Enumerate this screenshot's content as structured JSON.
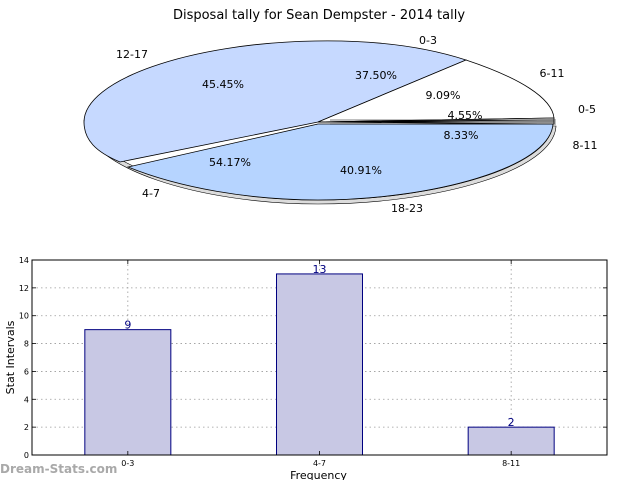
{
  "chart_data": [
    {
      "type": "pie",
      "title": "Disposal tally for Sean Dempster - 2014 tally",
      "outer": {
        "labels": [
          "0-3",
          "6-11",
          "0-5",
          "8-11",
          "18-23",
          "4-7",
          "12-17"
        ],
        "values": [
          37.5,
          9.09,
          4.55,
          8.33,
          40.91,
          54.17,
          45.45
        ]
      },
      "inner_labels": [
        "37.50%",
        "9.09%",
        "4.55%",
        "8.33%",
        "40.91%",
        "54.17%",
        "45.45%"
      ],
      "colors": {
        "light_blue": "#c6d9ff",
        "sky_blue": "#b6d4ff",
        "white": "#ffffff"
      }
    },
    {
      "type": "bar",
      "categories": [
        "0-3",
        "4-7",
        "8-11"
      ],
      "values": [
        9,
        13,
        2
      ],
      "xlabel": "Frequency",
      "ylabel": "Stat Intervals",
      "ylim": [
        0,
        14
      ],
      "yticks": [
        0,
        2,
        4,
        6,
        8,
        10,
        12,
        14
      ],
      "grid": true,
      "bar_color": "#c8c8e4",
      "edge_color": "#000080"
    }
  ],
  "watermark": "Dream-Stats.com"
}
